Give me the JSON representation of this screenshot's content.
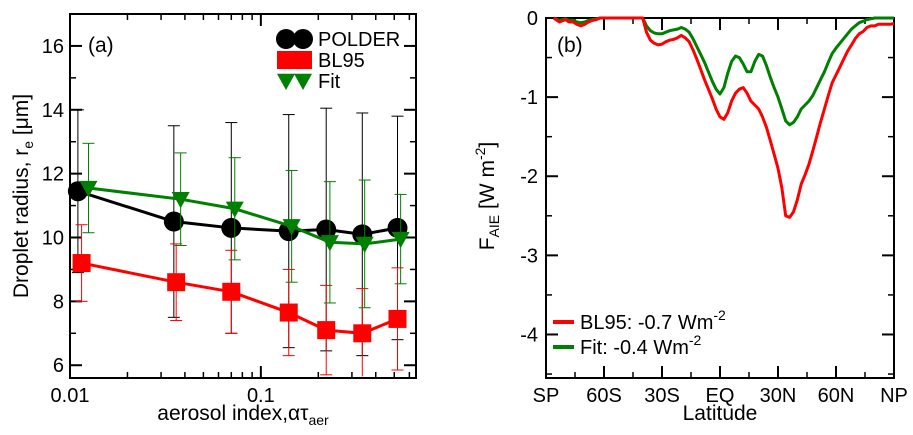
{
  "chart_data": [
    {
      "type": "line",
      "panel_label": "(a)",
      "ylabel": {
        "main": "Droplet radius, r",
        "sub": "e",
        "unit": " [μm]"
      },
      "xlabel": {
        "main": "aerosol index,ατ",
        "sub": "aer"
      },
      "x_scale": "log",
      "xlim": [
        0.01,
        0.65
      ],
      "ylim": [
        5.6,
        17
      ],
      "x_ticks": [
        {
          "v": 0.01,
          "label": "0.01"
        },
        {
          "v": 0.1,
          "label": "0.1"
        }
      ],
      "y_ticks": [
        {
          "v": 6,
          "label": "6"
        },
        {
          "v": 8,
          "label": "8"
        },
        {
          "v": 10,
          "label": "10"
        },
        {
          "v": 12,
          "label": "12"
        },
        {
          "v": 14,
          "label": "14"
        },
        {
          "v": 16,
          "label": "16"
        }
      ],
      "legend_position": "top-right",
      "series": [
        {
          "name": "POLDER",
          "color": "#000000",
          "marker": "circle",
          "x": [
            0.011,
            0.035,
            0.07,
            0.14,
            0.22,
            0.34,
            0.52
          ],
          "y": [
            11.45,
            10.5,
            10.3,
            10.2,
            10.25,
            10.1,
            10.3
          ],
          "err": [
            2.55,
            3.0,
            3.3,
            3.65,
            3.8,
            3.8,
            3.5
          ]
        },
        {
          "name": "BL95",
          "color": "#ff0000",
          "marker": "square",
          "x": [
            0.0115,
            0.036,
            0.07,
            0.14,
            0.22,
            0.34,
            0.52
          ],
          "y": [
            9.2,
            8.6,
            8.3,
            7.65,
            7.1,
            7.0,
            7.45
          ],
          "err": [
            1.2,
            1.2,
            1.3,
            1.35,
            1.4,
            1.4,
            1.6
          ]
        },
        {
          "name": "Fit",
          "color": "#008000",
          "marker": "triangle-down",
          "x": [
            0.0125,
            0.038,
            0.073,
            0.145,
            0.23,
            0.35,
            0.54
          ],
          "y": [
            11.55,
            11.2,
            10.9,
            10.35,
            9.85,
            9.8,
            9.95
          ],
          "err": [
            1.4,
            1.45,
            1.6,
            1.75,
            1.9,
            2.0,
            1.4
          ]
        }
      ]
    },
    {
      "type": "line",
      "panel_label": "(b)",
      "ylabel": {
        "main": "F",
        "sub": "AIE",
        "unit": " [W m",
        "sup": "-2",
        "close": "]"
      },
      "xlabel": {
        "main": "Latitude"
      },
      "xlim": [
        -90,
        90
      ],
      "ylim": [
        -4.55,
        0
      ],
      "x_ticks": [
        {
          "v": -90,
          "label": "SP"
        },
        {
          "v": -60,
          "label": "60S"
        },
        {
          "v": -30,
          "label": "30S"
        },
        {
          "v": 0,
          "label": "EQ"
        },
        {
          "v": 30,
          "label": "30N"
        },
        {
          "v": 60,
          "label": "60N"
        },
        {
          "v": 90,
          "label": "NP"
        }
      ],
      "y_ticks": [
        {
          "v": 0,
          "label": "0"
        },
        {
          "v": -1,
          "label": "-1"
        },
        {
          "v": -2,
          "label": "-2"
        },
        {
          "v": -3,
          "label": "-3"
        },
        {
          "v": -4,
          "label": "-4"
        }
      ],
      "legend_position": "bottom-left",
      "series": [
        {
          "name": "BL95",
          "legend_value": ": -0.7 Wm",
          "legend_sup": "-2",
          "color": "#ff0000",
          "x": [
            -86,
            -83,
            -80,
            -78,
            -76,
            -74,
            -72,
            -70,
            -68,
            -66,
            -64,
            -62,
            -60,
            -40,
            -38,
            -36,
            -34,
            -32,
            -30,
            -28,
            -26,
            -24,
            -22,
            -20,
            -18,
            -16,
            -14,
            -12,
            -10,
            -8,
            -6,
            -4,
            -2,
            0,
            2,
            4,
            6,
            8,
            10,
            12,
            14,
            16,
            18,
            20,
            22,
            24,
            26,
            28,
            30,
            32,
            34,
            36,
            38,
            40,
            42,
            44,
            46,
            48,
            50,
            52,
            54,
            56,
            58,
            60,
            62,
            64,
            66,
            68,
            70,
            72,
            74,
            76,
            78,
            80,
            82,
            84,
            86,
            88,
            90
          ],
          "y": [
            0,
            -0.05,
            -0.02,
            -0.05,
            -0.05,
            -0.08,
            -0.1,
            -0.08,
            -0.05,
            -0.03,
            -0.02,
            0,
            0,
            0,
            -0.18,
            -0.28,
            -0.32,
            -0.34,
            -0.33,
            -0.3,
            -0.28,
            -0.27,
            -0.25,
            -0.22,
            -0.25,
            -0.3,
            -0.4,
            -0.52,
            -0.65,
            -0.78,
            -0.9,
            -1.02,
            -1.15,
            -1.25,
            -1.28,
            -1.2,
            -1.05,
            -0.95,
            -0.9,
            -0.88,
            -0.95,
            -1.05,
            -1.1,
            -1.15,
            -1.25,
            -1.38,
            -1.55,
            -1.72,
            -1.9,
            -2.15,
            -2.5,
            -2.52,
            -2.45,
            -2.3,
            -2.1,
            -1.98,
            -1.85,
            -1.68,
            -1.5,
            -1.32,
            -1.15,
            -0.98,
            -0.82,
            -0.72,
            -0.62,
            -0.52,
            -0.42,
            -0.34,
            -0.26,
            -0.2,
            -0.17,
            -0.12,
            -0.1,
            -0.1,
            -0.08,
            -0.08,
            -0.08,
            -0.08,
            -0.07
          ]
        },
        {
          "name": "Fit",
          "legend_value": ": -0.4 Wm",
          "legend_sup": "-2",
          "color": "#008000",
          "x": [
            -86,
            -83,
            -80,
            -78,
            -76,
            -74,
            -72,
            -70,
            -68,
            -66,
            -64,
            -62,
            -60,
            -40,
            -38,
            -36,
            -34,
            -32,
            -30,
            -28,
            -26,
            -24,
            -22,
            -20,
            -18,
            -16,
            -14,
            -12,
            -10,
            -8,
            -6,
            -4,
            -2,
            0,
            2,
            4,
            6,
            8,
            10,
            12,
            14,
            16,
            18,
            20,
            22,
            24,
            26,
            28,
            30,
            32,
            34,
            36,
            38,
            40,
            42,
            44,
            46,
            48,
            50,
            52,
            54,
            56,
            58,
            60,
            62,
            64,
            66,
            68,
            70,
            72,
            74,
            76,
            78,
            80,
            82,
            84,
            86,
            88,
            90
          ],
          "y": [
            0,
            -0.03,
            -0.01,
            -0.03,
            -0.03,
            -0.05,
            -0.06,
            -0.05,
            -0.03,
            -0.02,
            -0.01,
            0,
            0,
            0,
            -0.1,
            -0.16,
            -0.19,
            -0.2,
            -0.2,
            -0.18,
            -0.16,
            -0.15,
            -0.14,
            -0.12,
            -0.14,
            -0.18,
            -0.26,
            -0.36,
            -0.46,
            -0.56,
            -0.68,
            -0.8,
            -0.9,
            -0.96,
            -0.88,
            -0.7,
            -0.55,
            -0.48,
            -0.5,
            -0.58,
            -0.68,
            -0.68,
            -0.55,
            -0.46,
            -0.48,
            -0.6,
            -0.75,
            -0.88,
            -1.0,
            -1.15,
            -1.3,
            -1.35,
            -1.32,
            -1.25,
            -1.15,
            -1.1,
            -1.05,
            -0.98,
            -0.88,
            -0.78,
            -0.68,
            -0.56,
            -0.45,
            -0.38,
            -0.32,
            -0.26,
            -0.2,
            -0.14,
            -0.1,
            -0.06,
            -0.04,
            -0.02,
            -0.01,
            0,
            0,
            0,
            0,
            0,
            0
          ]
        }
      ]
    }
  ]
}
